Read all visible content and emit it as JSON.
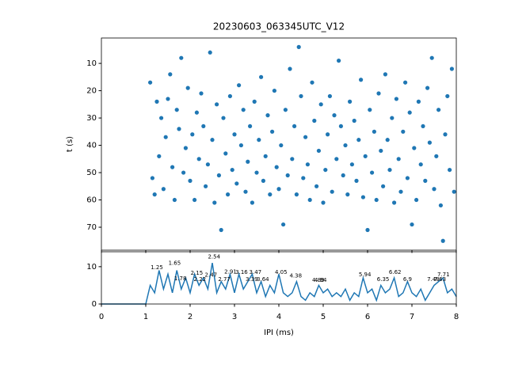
{
  "chart_data": [
    {
      "type": "scatter",
      "title": "20230603_063345UTC_V12",
      "y_label": "t (s)",
      "color": "#1f77b4",
      "xlim": [
        0,
        8
      ],
      "ylim": [
        78.4,
        0.7
      ],
      "yticks": [
        10,
        20,
        30,
        40,
        50,
        60,
        70
      ],
      "xticks": [
        0,
        1,
        2,
        3,
        4,
        5,
        6,
        7,
        8
      ],
      "x": [
        1.1,
        1.15,
        1.2,
        1.25,
        1.3,
        1.35,
        1.4,
        1.45,
        1.5,
        1.55,
        1.6,
        1.65,
        1.7,
        1.75,
        1.8,
        1.85,
        1.9,
        1.95,
        2.0,
        2.05,
        2.1,
        2.15,
        2.2,
        2.25,
        2.3,
        2.35,
        2.4,
        2.45,
        2.5,
        2.55,
        2.6,
        2.65,
        2.7,
        2.75,
        2.8,
        2.85,
        2.9,
        2.95,
        3.0,
        3.05,
        3.1,
        3.15,
        3.2,
        3.25,
        3.3,
        3.35,
        3.4,
        3.45,
        3.5,
        3.55,
        3.6,
        3.65,
        3.7,
        3.75,
        3.8,
        3.85,
        3.9,
        3.95,
        4.0,
        4.05,
        4.1,
        4.15,
        4.2,
        4.25,
        4.3,
        4.35,
        4.4,
        4.45,
        4.5,
        4.55,
        4.6,
        4.65,
        4.7,
        4.75,
        4.8,
        4.85,
        4.9,
        4.95,
        5.0,
        5.05,
        5.1,
        5.15,
        5.2,
        5.25,
        5.3,
        5.35,
        5.4,
        5.45,
        5.5,
        5.55,
        5.6,
        5.65,
        5.7,
        5.75,
        5.8,
        5.85,
        5.9,
        5.95,
        6.0,
        6.05,
        6.1,
        6.15,
        6.2,
        6.25,
        6.3,
        6.35,
        6.4,
        6.45,
        6.5,
        6.55,
        6.6,
        6.65,
        6.7,
        6.75,
        6.8,
        6.85,
        6.9,
        6.95,
        7.0,
        7.05,
        7.1,
        7.15,
        7.2,
        7.25,
        7.3,
        7.35,
        7.4,
        7.45,
        7.5,
        7.55,
        7.6,
        7.65,
        7.7,
        7.75,
        7.8,
        7.85,
        7.9,
        7.95
      ],
      "values": [
        17,
        52,
        58,
        24,
        44,
        30,
        56,
        37,
        23,
        14,
        48,
        60,
        27,
        34,
        8,
        50,
        41,
        19,
        53,
        36,
        60,
        28,
        45,
        21,
        33,
        55,
        47,
        6,
        38,
        61,
        25,
        51,
        71,
        30,
        43,
        58,
        22,
        49,
        36,
        54,
        18,
        40,
        27,
        57,
        46,
        33,
        61,
        24,
        50,
        38,
        15,
        53,
        44,
        29,
        58,
        35,
        20,
        48,
        56,
        40,
        69,
        27,
        51,
        12,
        45,
        33,
        58,
        4,
        22,
        52,
        37,
        47,
        60,
        17,
        31,
        55,
        42,
        25,
        61,
        49,
        36,
        22,
        57,
        29,
        45,
        9,
        33,
        51,
        40,
        58,
        24,
        47,
        31,
        53,
        38,
        16,
        59,
        44,
        71,
        27,
        50,
        35,
        60,
        21,
        42,
        55,
        14,
        38,
        49,
        30,
        61,
        23,
        45,
        57,
        35,
        17,
        52,
        28,
        69,
        41,
        60,
        24,
        47,
        33,
        53,
        19,
        39,
        8,
        56,
        44,
        27,
        62,
        75,
        36,
        22,
        49,
        12,
        57
      ]
    },
    {
      "type": "line",
      "x_label": "IPI (ms)",
      "color": "#1f77b4",
      "xlim": [
        0,
        8
      ],
      "ylim": [
        0,
        14
      ],
      "xticks": [
        0,
        1,
        2,
        3,
        4,
        5,
        6,
        7,
        8
      ],
      "yticks": [
        0,
        10
      ],
      "x": [
        0,
        0.1,
        0.2,
        0.3,
        0.4,
        0.5,
        0.6,
        0.7,
        0.8,
        0.9,
        1.0,
        1.1,
        1.2,
        1.3,
        1.4,
        1.5,
        1.6,
        1.7,
        1.8,
        1.9,
        2.0,
        2.1,
        2.2,
        2.3,
        2.4,
        2.5,
        2.6,
        2.7,
        2.8,
        2.9,
        3.0,
        3.1,
        3.2,
        3.3,
        3.4,
        3.5,
        3.6,
        3.7,
        3.8,
        3.9,
        4.0,
        4.1,
        4.2,
        4.3,
        4.4,
        4.5,
        4.6,
        4.7,
        4.8,
        4.9,
        5.0,
        5.1,
        5.2,
        5.3,
        5.4,
        5.5,
        5.6,
        5.7,
        5.8,
        5.9,
        6.0,
        6.1,
        6.2,
        6.3,
        6.4,
        6.5,
        6.6,
        6.7,
        6.8,
        6.9,
        7.0,
        7.1,
        7.2,
        7.3,
        7.4,
        7.5,
        7.6,
        7.7,
        7.8,
        7.9,
        8.0
      ],
      "values": [
        0,
        0,
        0,
        0,
        0,
        0,
        0,
        0,
        0,
        0,
        0,
        5,
        3,
        9,
        4,
        8,
        3,
        9,
        4,
        7,
        3,
        8,
        5,
        7,
        4,
        11,
        3,
        6,
        4,
        8,
        3,
        8,
        4,
        6,
        8,
        3,
        6,
        2,
        5,
        3,
        8,
        3,
        2,
        3,
        6,
        2,
        1,
        3,
        2,
        5,
        3,
        4,
        2,
        3,
        2,
        4,
        1,
        3,
        2,
        7,
        3,
        4,
        1,
        5,
        3,
        4,
        7,
        2,
        3,
        6,
        3,
        2,
        4,
        1,
        3,
        5,
        6,
        7,
        3,
        4,
        2
      ],
      "peaks": [
        {
          "x": 1.25,
          "y": 9.8
        },
        {
          "x": 1.65,
          "y": 10.9
        },
        {
          "x": 1.78,
          "y": 6.8
        },
        {
          "x": 2.15,
          "y": 8.3
        },
        {
          "x": 2.22,
          "y": 6.6
        },
        {
          "x": 2.47,
          "y": 7.7
        },
        {
          "x": 2.54,
          "y": 12.6
        },
        {
          "x": 2.77,
          "y": 6.6
        },
        {
          "x": 2.91,
          "y": 8.6
        },
        {
          "x": 3.16,
          "y": 8.5
        },
        {
          "x": 3.39,
          "y": 6.6
        },
        {
          "x": 3.47,
          "y": 8.5
        },
        {
          "x": 3.64,
          "y": 6.6
        },
        {
          "x": 4.05,
          "y": 8.5
        },
        {
          "x": 4.38,
          "y": 7.5
        },
        {
          "x": 4.89,
          "y": 6.4
        },
        {
          "x": 4.94,
          "y": 6.4
        },
        {
          "x": 5.94,
          "y": 7.8
        },
        {
          "x": 6.35,
          "y": 6.6
        },
        {
          "x": 6.62,
          "y": 8.5
        },
        {
          "x": 6.9,
          "y": 6.6
        },
        {
          "x": 7.48,
          "y": 6.6
        },
        {
          "x": 7.63,
          "y": 6.6
        },
        {
          "x": 7.71,
          "y": 7.8
        }
      ]
    }
  ]
}
